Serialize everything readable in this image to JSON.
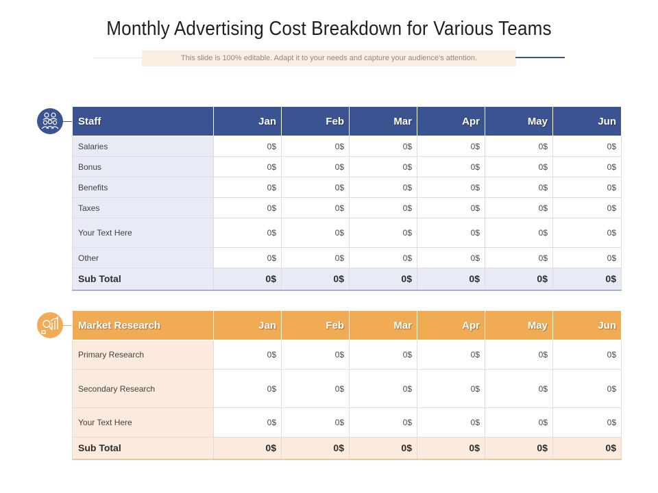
{
  "title": "Monthly Advertising Cost Breakdown for Various Teams",
  "subtitle": "This slide is 100% editable. Adapt it to your needs and capture your audience’s attention.",
  "colors": {
    "staff": "#3b5390",
    "market_research": "#f1ab55"
  },
  "staff": {
    "icon": "team-icon",
    "headers": [
      "Staff",
      "Jan",
      "Feb",
      "Mar",
      "Apr",
      "May",
      "Jun"
    ],
    "rows": [
      {
        "label": "Salaries",
        "values": [
          "0$",
          "0$",
          "0$",
          "0$",
          "0$",
          "0$"
        ]
      },
      {
        "label": "Bonus",
        "values": [
          "0$",
          "0$",
          "0$",
          "0$",
          "0$",
          "0$"
        ]
      },
      {
        "label": "Benefits",
        "values": [
          "0$",
          "0$",
          "0$",
          "0$",
          "0$",
          "0$"
        ]
      },
      {
        "label": "Taxes",
        "values": [
          "0$",
          "0$",
          "0$",
          "0$",
          "0$",
          "0$"
        ]
      },
      {
        "label": "Your Text Here",
        "values": [
          "0$",
          "0$",
          "0$",
          "0$",
          "0$",
          "0$"
        ]
      },
      {
        "label": "Other",
        "values": [
          "0$",
          "0$",
          "0$",
          "0$",
          "0$",
          "0$"
        ]
      }
    ],
    "subtotal": {
      "label": "Sub Total",
      "values": [
        "0$",
        "0$",
        "0$",
        "0$",
        "0$",
        "0$"
      ]
    }
  },
  "market_research": {
    "icon": "research-chart-icon",
    "headers": [
      "Market Research",
      "Jan",
      "Feb",
      "Mar",
      "Apr",
      "May",
      "Jun"
    ],
    "rows": [
      {
        "label": "Primary Research",
        "values": [
          "0$",
          "0$",
          "0$",
          "0$",
          "0$",
          "0$"
        ]
      },
      {
        "label": "Secondary Research",
        "values": [
          "0$",
          "0$",
          "0$",
          "0$",
          "0$",
          "0$"
        ]
      },
      {
        "label": "Your Text Here",
        "values": [
          "0$",
          "0$",
          "0$",
          "0$",
          "0$",
          "0$"
        ]
      }
    ],
    "subtotal": {
      "label": "Sub Total",
      "values": [
        "0$",
        "0$",
        "0$",
        "0$",
        "0$",
        "0$"
      ]
    }
  }
}
